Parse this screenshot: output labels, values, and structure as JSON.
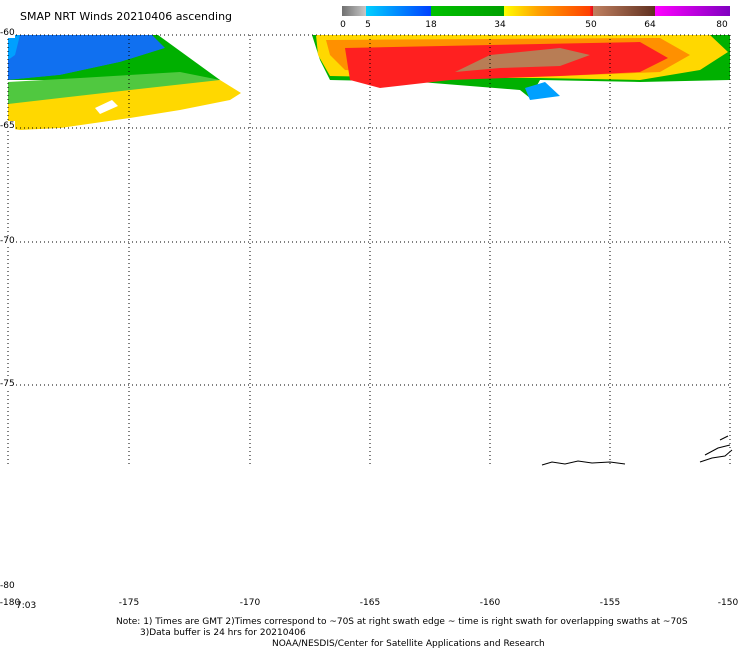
{
  "title": "SMAP NRT Winds 20210406 ascending",
  "colorbar": {
    "labels": [
      "0",
      "5",
      "18",
      "34",
      "50",
      "64",
      "80"
    ],
    "colors": [
      "#6e6e6e",
      "#00a0ff",
      "#00c000",
      "#ffe000",
      "#ff2020",
      "#b08060",
      "#c000e0"
    ]
  },
  "map": {
    "lat_labels": [
      "-60",
      "-65",
      "-70",
      "-75",
      "-80"
    ],
    "lon_labels": [
      "-180",
      "-175",
      "-170",
      "-165",
      "-160",
      "-155",
      "-150"
    ]
  },
  "time_label": "7:03",
  "notes": {
    "line1": "Note: 1) Times are GMT 2)Times correspond to ~70S at right swath edge ~ time is right swath for overlapping swaths at ~70S",
    "line2": "3)Data buffer is 24 hrs for 20210406",
    "line3": "NOAA/NESDIS/Center for Satellite Applications and Research"
  }
}
